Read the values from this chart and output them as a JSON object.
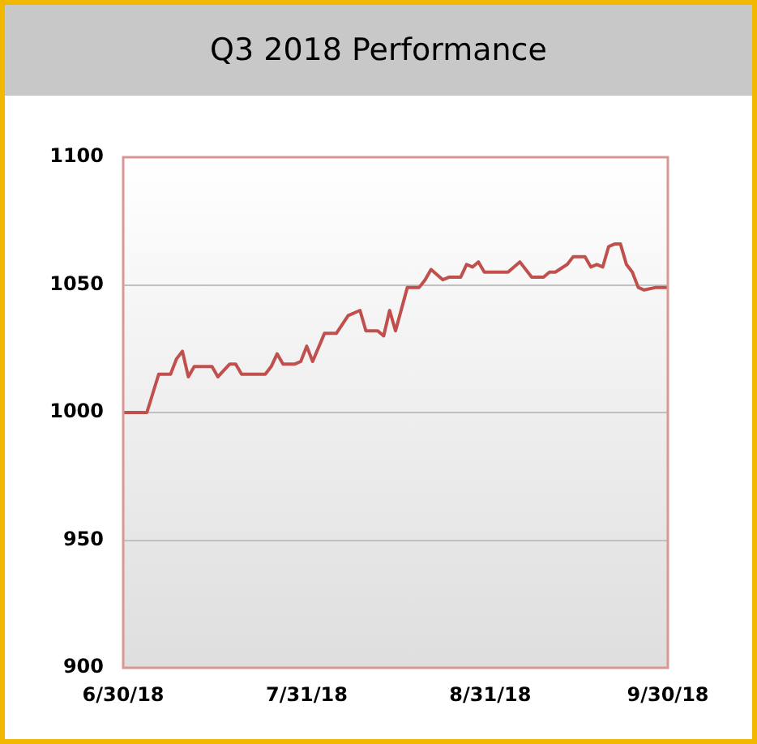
{
  "chart_data": {
    "type": "line",
    "title": "Q3 2018 Performance",
    "x": [
      "2018-06-30",
      "2018-07-02",
      "2018-07-03",
      "2018-07-04",
      "2018-07-06",
      "2018-07-08",
      "2018-07-09",
      "2018-07-10",
      "2018-07-11",
      "2018-07-12",
      "2018-07-15",
      "2018-07-16",
      "2018-07-18",
      "2018-07-19",
      "2018-07-20",
      "2018-07-22",
      "2018-07-24",
      "2018-07-25",
      "2018-07-26",
      "2018-07-27",
      "2018-07-29",
      "2018-07-30",
      "2018-07-31",
      "2018-08-01",
      "2018-08-03",
      "2018-08-05",
      "2018-08-07",
      "2018-08-09",
      "2018-08-10",
      "2018-08-12",
      "2018-08-13",
      "2018-08-14",
      "2018-08-15",
      "2018-08-17",
      "2018-08-19",
      "2018-08-20",
      "2018-08-21",
      "2018-08-23",
      "2018-08-24",
      "2018-08-26",
      "2018-08-27",
      "2018-08-28",
      "2018-08-29",
      "2018-08-30",
      "2018-09-03",
      "2018-09-05",
      "2018-09-07",
      "2018-09-09",
      "2018-09-10",
      "2018-09-11",
      "2018-09-13",
      "2018-09-14",
      "2018-09-16",
      "2018-09-17",
      "2018-09-18",
      "2018-09-19",
      "2018-09-20",
      "2018-09-21",
      "2018-09-22",
      "2018-09-23",
      "2018-09-24",
      "2018-09-25",
      "2018-09-26",
      "2018-09-28",
      "2018-09-30"
    ],
    "series": [
      {
        "color": "#c0504d",
        "values": [
          1000,
          1000,
          1000,
          1000,
          1015,
          1015,
          1021,
          1024,
          1014,
          1018,
          1018,
          1014,
          1019,
          1019,
          1015,
          1015,
          1015,
          1018,
          1023,
          1019,
          1019,
          1020,
          1026,
          1020,
          1031,
          1031,
          1038,
          1040,
          1032,
          1032,
          1030,
          1040,
          1032,
          1049,
          1049,
          1052,
          1056,
          1052,
          1053,
          1053,
          1058,
          1057,
          1059,
          1055,
          1055,
          1059,
          1053,
          1053,
          1055,
          1055,
          1058,
          1061,
          1061,
          1057,
          1058,
          1057,
          1065,
          1066,
          1066,
          1058,
          1055,
          1049,
          1048,
          1049,
          1049
        ]
      }
    ],
    "xlim": [
      "2018-06-30",
      "2018-09-30"
    ],
    "xticks": [
      {
        "value": "2018-06-30",
        "label": "6/30/18"
      },
      {
        "value": "2018-07-31",
        "label": "7/31/18"
      },
      {
        "value": "2018-08-31",
        "label": "8/31/18"
      },
      {
        "value": "2018-09-30",
        "label": "9/30/18"
      }
    ],
    "ylim": [
      900,
      1100
    ],
    "yticks": [
      900,
      950,
      1000,
      1050,
      1100
    ],
    "grid": "y",
    "marker": "none",
    "line_style": "solid"
  }
}
